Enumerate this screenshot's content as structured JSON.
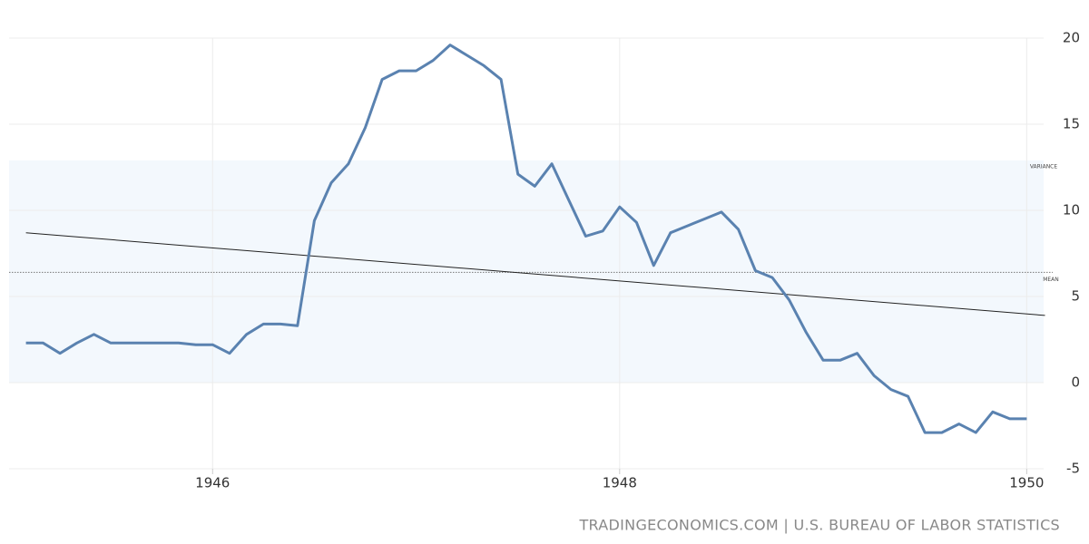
{
  "chart_data": {
    "type": "line",
    "x": [
      1945.083,
      1945.167,
      1945.25,
      1945.333,
      1945.417,
      1945.5,
      1945.583,
      1945.667,
      1945.75,
      1945.833,
      1945.917,
      1946.0,
      1946.083,
      1946.167,
      1946.25,
      1946.333,
      1946.417,
      1946.5,
      1946.583,
      1946.667,
      1946.75,
      1946.833,
      1946.917,
      1947.0,
      1947.083,
      1947.167,
      1947.25,
      1947.333,
      1947.417,
      1947.5,
      1947.583,
      1947.667,
      1947.75,
      1947.833,
      1947.917,
      1948.0,
      1948.083,
      1948.167,
      1948.25,
      1948.333,
      1948.417,
      1948.5,
      1948.583,
      1948.667,
      1948.75,
      1948.833,
      1948.917,
      1949.0,
      1949.083,
      1949.167,
      1949.25,
      1949.333,
      1949.417,
      1949.5,
      1949.583,
      1949.667,
      1949.75,
      1949.833,
      1949.917,
      1950.0
    ],
    "series": [
      {
        "color": "#5a82b0",
        "values": [
          2.3,
          2.3,
          1.7,
          2.3,
          2.8,
          2.3,
          2.3,
          2.3,
          2.3,
          2.3,
          2.2,
          2.2,
          1.7,
          2.8,
          3.4,
          3.4,
          3.3,
          9.4,
          11.6,
          12.7,
          14.8,
          17.6,
          18.1,
          18.1,
          18.7,
          19.6,
          19.0,
          18.4,
          17.6,
          12.1,
          11.4,
          12.7,
          10.6,
          8.5,
          8.8,
          10.2,
          9.3,
          6.8,
          8.7,
          9.1,
          9.5,
          9.9,
          8.9,
          6.5,
          6.1,
          4.8,
          2.9,
          1.3,
          1.3,
          1.7,
          0.4,
          -0.4,
          -0.8,
          -2.9,
          -2.9,
          -2.4,
          -2.9,
          -1.7,
          -2.1,
          -2.1
        ]
      }
    ],
    "xlim": [
      1945.0,
      1950.15
    ],
    "xticks": [
      1946,
      1948,
      1950
    ],
    "ylim": [
      -5,
      20
    ],
    "yticks": [
      -5,
      0,
      5,
      10,
      15,
      20
    ],
    "grid": true,
    "variance_band": [
      0,
      12.9
    ],
    "variance_label": "VARIANCE",
    "mean": 6.4,
    "mean_label": "MEAN",
    "trend": {
      "x": [
        1945.083,
        1950.09
      ],
      "values": [
        8.7,
        3.9
      ]
    },
    "source": "TRADINGECONOMICS.COM | U.S. BUREAU OF LABOR STATISTICS"
  }
}
